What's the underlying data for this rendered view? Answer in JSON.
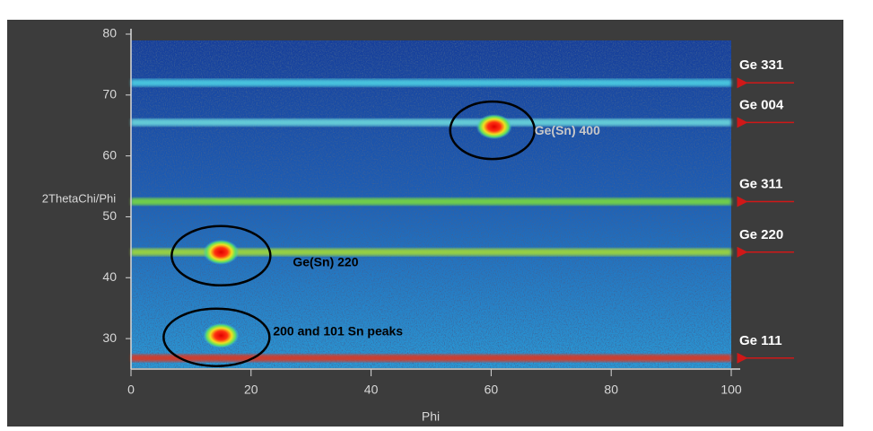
{
  "chart_data": {
    "type": "heatmap",
    "x_label": "Phi",
    "y_label": "2ThetaChi/Phi",
    "xlim": [
      0,
      100
    ],
    "ylim": [
      25,
      80
    ],
    "xticks": [
      0,
      20,
      40,
      60,
      80,
      100
    ],
    "yticks": [
      30,
      40,
      50,
      60,
      70,
      80
    ],
    "lines": [
      {
        "name": "Ge 331",
        "y": 72,
        "color": "#4fd8e8"
      },
      {
        "name": "Ge 004",
        "y": 65.5,
        "color": "#6fe0e0"
      },
      {
        "name": "Ge 311",
        "y": 52.5,
        "color": "#7de03a"
      },
      {
        "name": "Ge 220",
        "y": 44.2,
        "color": "#a8e030"
      },
      {
        "name": "Ge 111",
        "y": 26.8,
        "color": "#e83018"
      }
    ],
    "peaks": [
      {
        "name": "Ge(Sn) 400",
        "x": 60.5,
        "y": 64.8
      },
      {
        "name": "Ge(Sn) 220",
        "x": 15,
        "y": 44.2
      },
      {
        "name": "200 and 101 Sn peaks",
        "x": 15,
        "y": 30.5
      }
    ]
  }
}
